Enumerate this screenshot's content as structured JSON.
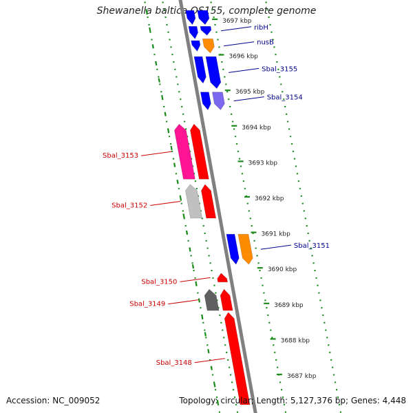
{
  "title": "Shewanella baltica OS155, complete genome",
  "accession_text": "Accession: NC_009052",
  "info_text": "Topology: circular; Length: 5,127,376 bp; Genes: 4,448",
  "colors": {
    "backbone": "#808080",
    "forward_label": "#00008b",
    "reverse_label": "#cc0000",
    "tick": "#1a8a1a"
  },
  "ticks": [
    {
      "kbp": 3697,
      "label": "3697 kbp"
    },
    {
      "kbp": 3696,
      "label": "3696 kbp"
    },
    {
      "kbp": 3695,
      "label": "3695 kbp"
    },
    {
      "kbp": 3694,
      "label": "3694 kbp"
    },
    {
      "kbp": 3693,
      "label": "3693 kbp"
    },
    {
      "kbp": 3692,
      "label": "3692 kbp"
    },
    {
      "kbp": 3691,
      "label": "3691 kbp"
    },
    {
      "kbp": 3690,
      "label": "3690 kbp"
    },
    {
      "kbp": 3689,
      "label": "3689 kbp"
    },
    {
      "kbp": 3688,
      "label": "3688 kbp"
    },
    {
      "kbp": 3687,
      "label": "3687 kbp"
    }
  ],
  "genes": [
    {
      "label": "",
      "strand": "forward",
      "ring": "outer",
      "start_kbp": 3697.25,
      "end_kbp": 3696.85,
      "color": "#0000ff"
    },
    {
      "label": "",
      "strand": "forward",
      "ring": "inner",
      "start_kbp": 3697.25,
      "end_kbp": 3696.85,
      "color": "#0000ff"
    },
    {
      "label": "ribH",
      "strand": "forward",
      "ring": "outer",
      "start_kbp": 3696.8,
      "end_kbp": 3696.55,
      "color": "#0000ff"
    },
    {
      "label": "",
      "strand": "forward",
      "ring": "inner",
      "start_kbp": 3696.8,
      "end_kbp": 3696.45,
      "color": "#0000ff"
    },
    {
      "label": "nusB",
      "strand": "forward",
      "ring": "outer",
      "start_kbp": 3696.45,
      "end_kbp": 3696.05,
      "color": "#ff8c00"
    },
    {
      "label": "",
      "strand": "forward",
      "ring": "inner",
      "start_kbp": 3696.4,
      "end_kbp": 3696.1,
      "color": "#0000ff"
    },
    {
      "label": "Sbal_3155",
      "strand": "forward",
      "ring": "outer",
      "start_kbp": 3695.95,
      "end_kbp": 3695.05,
      "color": "#0000ff"
    },
    {
      "label": "",
      "strand": "forward",
      "ring": "inner",
      "start_kbp": 3695.95,
      "end_kbp": 3695.2,
      "color": "#0000ff"
    },
    {
      "label": "Sbal_3154",
      "strand": "forward",
      "ring": "outer",
      "start_kbp": 3694.95,
      "end_kbp": 3694.45,
      "color": "#7b68ee"
    },
    {
      "label": "",
      "strand": "forward",
      "ring": "inner",
      "start_kbp": 3694.95,
      "end_kbp": 3694.45,
      "color": "#0000ff"
    },
    {
      "label": "Sbal_3153",
      "strand": "reverse",
      "ring": "outer",
      "start_kbp": 3694.05,
      "end_kbp": 3692.5,
      "color": "#ff1493"
    },
    {
      "label": "",
      "strand": "reverse",
      "ring": "inner",
      "start_kbp": 3694.05,
      "end_kbp": 3692.5,
      "color": "#ff0000"
    },
    {
      "label": "Sbal_3152",
      "strand": "reverse",
      "ring": "outer",
      "start_kbp": 3692.35,
      "end_kbp": 3691.4,
      "color": "#c0c0c0"
    },
    {
      "label": "",
      "strand": "reverse",
      "ring": "inner",
      "start_kbp": 3692.35,
      "end_kbp": 3691.4,
      "color": "#ff0000"
    },
    {
      "label": "Sbal_3151",
      "strand": "forward",
      "ring": "outer",
      "start_kbp": 3690.95,
      "end_kbp": 3690.1,
      "color": "#ff8c00"
    },
    {
      "label": "",
      "strand": "forward",
      "ring": "inner",
      "start_kbp": 3690.95,
      "end_kbp": 3690.1,
      "color": "#0000ff"
    },
    {
      "label": "Sbal_3150",
      "strand": "reverse",
      "ring": "inner",
      "start_kbp": 3689.85,
      "end_kbp": 3689.6,
      "color": "#ff0000"
    },
    {
      "label": "Sbal_3149",
      "strand": "reverse",
      "ring": "outer",
      "start_kbp": 3689.4,
      "end_kbp": 3688.8,
      "color": "#606060"
    },
    {
      "label": "",
      "strand": "reverse",
      "ring": "inner",
      "start_kbp": 3689.4,
      "end_kbp": 3688.8,
      "color": "#ff0000"
    },
    {
      "label": "Sbal_3148",
      "strand": "reverse",
      "ring": "inner",
      "start_kbp": 3688.75,
      "end_kbp": 3686.15,
      "color": "#ff0000"
    }
  ]
}
